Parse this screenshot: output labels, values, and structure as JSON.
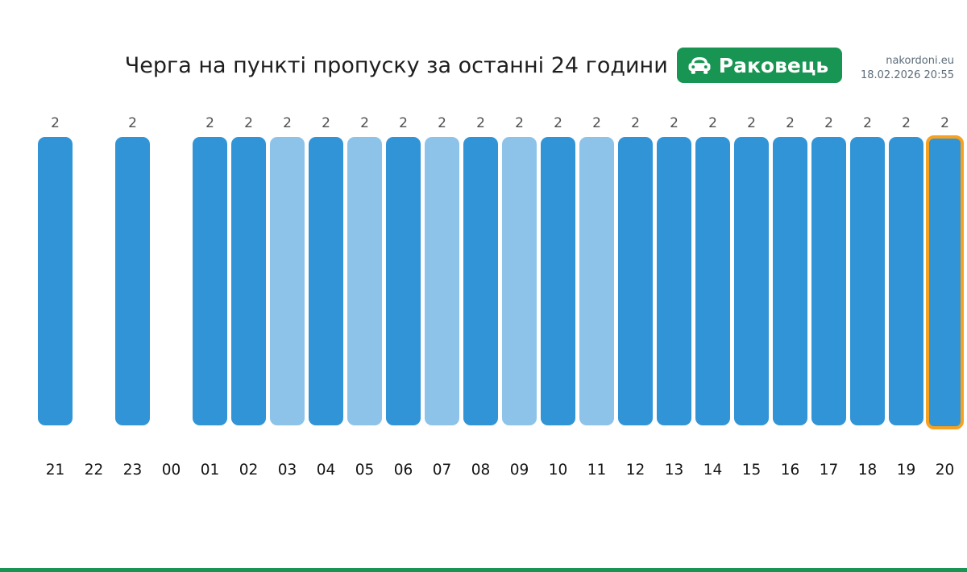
{
  "site": {
    "name": "nakordoni.eu",
    "datetime": "18.02.2026 20:55"
  },
  "header": {
    "title": "Черга на пункті пропуску за останні 24 години",
    "badge": {
      "icon": "car-icon",
      "label": "Раковець",
      "background_color": "#189552",
      "text_color": "#ffffff"
    }
  },
  "chart_data": {
    "type": "bar",
    "title": "Черга на пункті пропуску за останні 24 години",
    "checkpoint": "Раковець",
    "categories": [
      "21",
      "22",
      "23",
      "00",
      "01",
      "02",
      "03",
      "04",
      "05",
      "06",
      "07",
      "08",
      "09",
      "10",
      "11",
      "12",
      "13",
      "14",
      "15",
      "16",
      "17",
      "18",
      "19",
      "20"
    ],
    "values": [
      2,
      null,
      2,
      null,
      2,
      2,
      2,
      2,
      2,
      2,
      2,
      2,
      2,
      2,
      2,
      2,
      2,
      2,
      2,
      2,
      2,
      2,
      2,
      2
    ],
    "shades": [
      "dark",
      null,
      "dark",
      null,
      "dark",
      "dark",
      "light",
      "dark",
      "light",
      "dark",
      "light",
      "dark",
      "light",
      "dark",
      "light",
      "dark",
      "dark",
      "dark",
      "dark",
      "dark",
      "dark",
      "dark",
      "dark",
      "dark"
    ],
    "highlight_index": 23,
    "ylim": [
      0,
      2
    ],
    "grid": false,
    "legend": false,
    "bar_color": "#3194d6",
    "bar_color_light": "#8dc3e9",
    "highlight_border_color": "#f7a11f",
    "value_label_color": "#4f4f4f",
    "axis_label_color": "#141414"
  },
  "footer": {
    "strip_color": "#189552"
  }
}
